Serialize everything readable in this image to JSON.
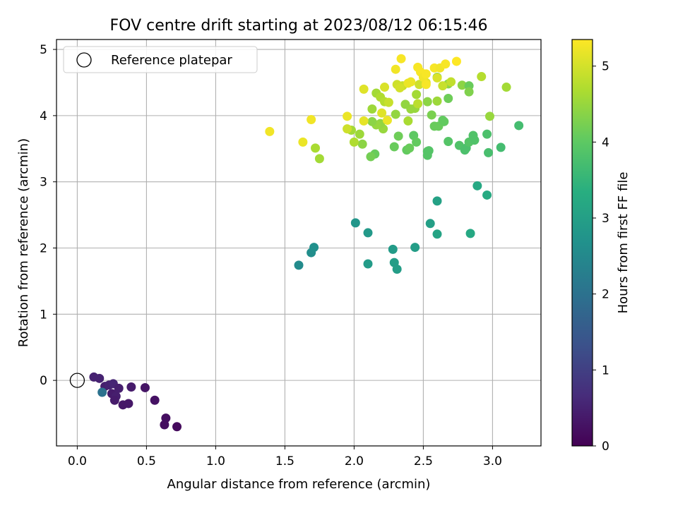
{
  "chart_data": {
    "type": "scatter",
    "title": "FOV centre drift starting at 2023/08/12 06:15:46",
    "xlabel": "Angular distance from reference (arcmin)",
    "ylabel": "Rotation from reference (arcmin)",
    "xlim": [
      -0.15,
      3.35
    ],
    "ylim": [
      -0.99,
      5.15
    ],
    "xticks": [
      0.0,
      0.5,
      1.0,
      1.5,
      2.0,
      2.5,
      3.0
    ],
    "xtick_labels": [
      "0.0",
      "0.5",
      "1.0",
      "1.5",
      "2.0",
      "2.5",
      "3.0"
    ],
    "yticks": [
      0,
      1,
      2,
      3,
      4,
      5
    ],
    "ytick_labels": [
      "0",
      "1",
      "2",
      "3",
      "4",
      "5"
    ],
    "grid": true,
    "legend": {
      "position": "top-left",
      "label": "Reference platepar"
    },
    "reference_point": {
      "x": 0.0,
      "y": 0.0
    },
    "colorbar": {
      "label": "Hours from first FF file",
      "range": [
        0,
        5.35
      ],
      "ticks": [
        0,
        1,
        2,
        3,
        4,
        5
      ],
      "tick_labels": [
        "0",
        "1",
        "2",
        "3",
        "4",
        "5"
      ],
      "colormap": "viridis"
    },
    "points": [
      {
        "x": 0.12,
        "y": 0.05,
        "c": 0.5
      },
      {
        "x": 0.16,
        "y": 0.03,
        "c": 0.5
      },
      {
        "x": 0.2,
        "y": -0.09,
        "c": 0.45
      },
      {
        "x": 0.23,
        "y": -0.07,
        "c": 0.5
      },
      {
        "x": 0.26,
        "y": -0.05,
        "c": 0.55
      },
      {
        "x": 0.25,
        "y": -0.2,
        "c": 0.4
      },
      {
        "x": 0.28,
        "y": -0.24,
        "c": 0.45
      },
      {
        "x": 0.27,
        "y": -0.3,
        "c": 0.4
      },
      {
        "x": 0.3,
        "y": -0.12,
        "c": 0.45
      },
      {
        "x": 0.33,
        "y": -0.37,
        "c": 0.35
      },
      {
        "x": 0.37,
        "y": -0.35,
        "c": 0.35
      },
      {
        "x": 0.39,
        "y": -0.1,
        "c": 0.4
      },
      {
        "x": 0.49,
        "y": -0.11,
        "c": 0.3
      },
      {
        "x": 0.56,
        "y": -0.3,
        "c": 0.25
      },
      {
        "x": 0.64,
        "y": -0.57,
        "c": 0.2
      },
      {
        "x": 0.63,
        "y": -0.67,
        "c": 0.2
      },
      {
        "x": 0.72,
        "y": -0.7,
        "c": 0.15
      },
      {
        "x": 0.18,
        "y": -0.18,
        "c": 2.0
      },
      {
        "x": 1.6,
        "y": 1.74,
        "c": 2.55
      },
      {
        "x": 1.69,
        "y": 1.93,
        "c": 2.6
      },
      {
        "x": 1.71,
        "y": 2.01,
        "c": 2.65
      },
      {
        "x": 2.01,
        "y": 2.38,
        "c": 2.8
      },
      {
        "x": 2.1,
        "y": 2.23,
        "c": 2.85
      },
      {
        "x": 2.1,
        "y": 1.76,
        "c": 2.9
      },
      {
        "x": 2.28,
        "y": 1.98,
        "c": 2.9
      },
      {
        "x": 2.29,
        "y": 1.78,
        "c": 2.95
      },
      {
        "x": 2.31,
        "y": 1.68,
        "c": 2.95
      },
      {
        "x": 2.44,
        "y": 2.01,
        "c": 2.95
      },
      {
        "x": 2.55,
        "y": 2.37,
        "c": 3.0
      },
      {
        "x": 2.6,
        "y": 2.21,
        "c": 3.1
      },
      {
        "x": 2.6,
        "y": 2.71,
        "c": 3.05
      },
      {
        "x": 2.84,
        "y": 2.22,
        "c": 3.2
      },
      {
        "x": 2.89,
        "y": 2.94,
        "c": 3.2
      },
      {
        "x": 2.96,
        "y": 2.8,
        "c": 3.25
      },
      {
        "x": 2.15,
        "y": 3.42,
        "c": 4.1
      },
      {
        "x": 2.12,
        "y": 3.38,
        "c": 4.2
      },
      {
        "x": 2.29,
        "y": 3.53,
        "c": 4.1
      },
      {
        "x": 2.32,
        "y": 3.69,
        "c": 4.15
      },
      {
        "x": 2.38,
        "y": 3.48,
        "c": 4.05
      },
      {
        "x": 2.4,
        "y": 3.51,
        "c": 4.1
      },
      {
        "x": 2.43,
        "y": 3.7,
        "c": 4.0
      },
      {
        "x": 2.45,
        "y": 3.6,
        "c": 4.05
      },
      {
        "x": 2.53,
        "y": 3.46,
        "c": 3.9
      },
      {
        "x": 2.53,
        "y": 3.4,
        "c": 3.9
      },
      {
        "x": 2.54,
        "y": 3.47,
        "c": 3.9
      },
      {
        "x": 2.56,
        "y": 4.01,
        "c": 4.25
      },
      {
        "x": 2.58,
        "y": 3.84,
        "c": 4.1
      },
      {
        "x": 2.61,
        "y": 3.84,
        "c": 4.1
      },
      {
        "x": 2.64,
        "y": 3.93,
        "c": 4.05
      },
      {
        "x": 2.65,
        "y": 3.91,
        "c": 4.05
      },
      {
        "x": 2.68,
        "y": 3.61,
        "c": 3.9
      },
      {
        "x": 2.76,
        "y": 3.55,
        "c": 3.85
      },
      {
        "x": 2.8,
        "y": 3.48,
        "c": 3.8
      },
      {
        "x": 2.81,
        "y": 3.51,
        "c": 3.8
      },
      {
        "x": 2.83,
        "y": 3.6,
        "c": 3.9
      },
      {
        "x": 2.86,
        "y": 3.7,
        "c": 3.85
      },
      {
        "x": 2.87,
        "y": 3.63,
        "c": 3.85
      },
      {
        "x": 2.96,
        "y": 3.72,
        "c": 3.8
      },
      {
        "x": 2.97,
        "y": 3.44,
        "c": 3.75
      },
      {
        "x": 3.06,
        "y": 3.52,
        "c": 3.7
      },
      {
        "x": 3.19,
        "y": 3.85,
        "c": 3.7
      },
      {
        "x": 2.6,
        "y": 4.58,
        "c": 4.3
      },
      {
        "x": 2.68,
        "y": 4.26,
        "c": 4.15
      },
      {
        "x": 2.68,
        "y": 4.48,
        "c": 4.4
      },
      {
        "x": 2.78,
        "y": 4.46,
        "c": 4.4
      },
      {
        "x": 2.83,
        "y": 4.45,
        "c": 4.1
      },
      {
        "x": 2.83,
        "y": 4.36,
        "c": 4.3
      },
      {
        "x": 2.98,
        "y": 3.99,
        "c": 4.5
      },
      {
        "x": 3.1,
        "y": 4.43,
        "c": 4.6
      },
      {
        "x": 2.92,
        "y": 4.59,
        "c": 4.75
      },
      {
        "x": 2.6,
        "y": 4.22,
        "c": 4.55
      },
      {
        "x": 2.53,
        "y": 4.21,
        "c": 4.4
      },
      {
        "x": 2.45,
        "y": 4.32,
        "c": 4.6
      },
      {
        "x": 2.44,
        "y": 4.11,
        "c": 4.5
      },
      {
        "x": 2.41,
        "y": 4.1,
        "c": 4.5
      },
      {
        "x": 2.37,
        "y": 4.17,
        "c": 4.45
      },
      {
        "x": 2.3,
        "y": 4.02,
        "c": 4.45
      },
      {
        "x": 2.21,
        "y": 3.8,
        "c": 4.5
      },
      {
        "x": 2.19,
        "y": 3.88,
        "c": 4.45
      },
      {
        "x": 2.16,
        "y": 3.86,
        "c": 4.5
      },
      {
        "x": 2.13,
        "y": 3.91,
        "c": 4.4
      },
      {
        "x": 2.13,
        "y": 4.1,
        "c": 4.55
      },
      {
        "x": 2.06,
        "y": 3.57,
        "c": 4.4
      },
      {
        "x": 2.04,
        "y": 3.72,
        "c": 4.55
      },
      {
        "x": 2.0,
        "y": 3.6,
        "c": 4.7
      },
      {
        "x": 1.98,
        "y": 3.78,
        "c": 4.6
      },
      {
        "x": 1.72,
        "y": 3.51,
        "c": 4.65
      },
      {
        "x": 1.75,
        "y": 3.35,
        "c": 4.6
      },
      {
        "x": 2.16,
        "y": 4.34,
        "c": 4.6
      },
      {
        "x": 2.19,
        "y": 4.28,
        "c": 4.7
      },
      {
        "x": 2.22,
        "y": 4.21,
        "c": 4.75
      },
      {
        "x": 2.25,
        "y": 4.2,
        "c": 4.9
      },
      {
        "x": 2.39,
        "y": 3.92,
        "c": 4.65
      },
      {
        "x": 2.35,
        "y": 4.45,
        "c": 4.9
      },
      {
        "x": 2.31,
        "y": 4.47,
        "c": 4.95
      },
      {
        "x": 2.33,
        "y": 4.42,
        "c": 5.0
      },
      {
        "x": 2.46,
        "y": 4.18,
        "c": 4.8
      },
      {
        "x": 2.47,
        "y": 4.47,
        "c": 4.95
      },
      {
        "x": 2.52,
        "y": 4.5,
        "c": 5.1
      },
      {
        "x": 2.6,
        "y": 4.57,
        "c": 5.05
      },
      {
        "x": 2.64,
        "y": 4.45,
        "c": 4.9
      },
      {
        "x": 2.7,
        "y": 4.51,
        "c": 4.85
      },
      {
        "x": 1.39,
        "y": 3.76,
        "c": 5.25
      },
      {
        "x": 1.63,
        "y": 3.6,
        "c": 5.2
      },
      {
        "x": 1.69,
        "y": 3.94,
        "c": 5.25
      },
      {
        "x": 1.95,
        "y": 3.99,
        "c": 5.2
      },
      {
        "x": 1.95,
        "y": 3.8,
        "c": 4.95
      },
      {
        "x": 2.07,
        "y": 3.92,
        "c": 5.15
      },
      {
        "x": 2.07,
        "y": 4.4,
        "c": 5.1
      },
      {
        "x": 2.2,
        "y": 4.04,
        "c": 5.1
      },
      {
        "x": 2.24,
        "y": 3.93,
        "c": 5.2
      },
      {
        "x": 2.22,
        "y": 4.43,
        "c": 5.05
      },
      {
        "x": 2.3,
        "y": 4.7,
        "c": 5.25
      },
      {
        "x": 2.34,
        "y": 4.86,
        "c": 5.3
      },
      {
        "x": 2.39,
        "y": 4.49,
        "c": 5.2
      },
      {
        "x": 2.41,
        "y": 4.51,
        "c": 5.2
      },
      {
        "x": 2.46,
        "y": 4.73,
        "c": 5.3
      },
      {
        "x": 2.48,
        "y": 4.66,
        "c": 5.3
      },
      {
        "x": 2.5,
        "y": 4.58,
        "c": 5.25
      },
      {
        "x": 2.52,
        "y": 4.63,
        "c": 5.3
      },
      {
        "x": 2.52,
        "y": 4.47,
        "c": 5.3
      },
      {
        "x": 2.58,
        "y": 4.72,
        "c": 5.3
      },
      {
        "x": 2.62,
        "y": 4.72,
        "c": 5.25
      },
      {
        "x": 2.66,
        "y": 4.78,
        "c": 5.3
      },
      {
        "x": 2.74,
        "y": 4.82,
        "c": 5.35
      }
    ]
  }
}
